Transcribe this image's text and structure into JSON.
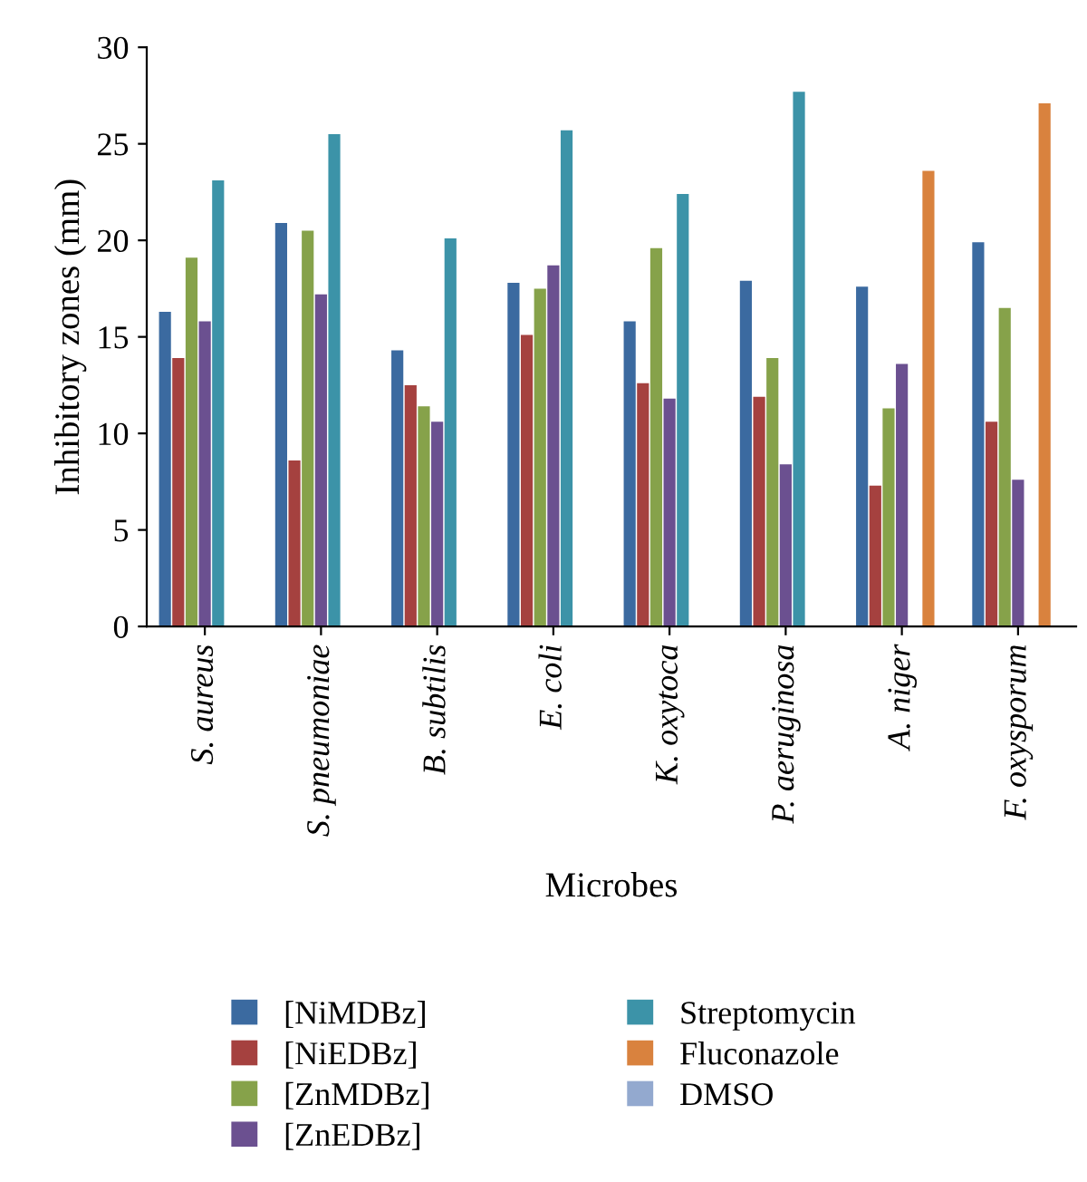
{
  "chart_data": {
    "type": "bar",
    "xlabel": "Microbes",
    "ylabel": "Inhibitory zones (mm)",
    "categories": [
      "S. aureus",
      "S. pneumoniae",
      "B. subtilis",
      "E. coli",
      "K. oxytoca",
      "P. aeruginosa",
      "A. niger",
      "F. oxysporum"
    ],
    "series": [
      {
        "name": "[NiMDBz]",
        "color": "#3b6aa0",
        "values": [
          16.3,
          20.9,
          14.3,
          17.8,
          15.8,
          17.9,
          17.6,
          19.9
        ]
      },
      {
        "name": "[NiEDBz]",
        "color": "#a5413f",
        "values": [
          13.9,
          8.6,
          12.5,
          15.1,
          12.6,
          11.9,
          7.3,
          10.6
        ]
      },
      {
        "name": "[ZnMDBz]",
        "color": "#86a24a",
        "values": [
          19.1,
          20.5,
          11.4,
          17.5,
          19.6,
          13.9,
          11.3,
          16.5
        ]
      },
      {
        "name": "[ZnEDBz]",
        "color": "#6b5090",
        "values": [
          15.8,
          17.2,
          10.6,
          18.7,
          11.8,
          8.4,
          13.6,
          7.6
        ]
      },
      {
        "name": "Streptomycin",
        "color": "#3c93a8",
        "values": [
          23.1,
          25.5,
          20.1,
          25.7,
          22.4,
          27.7,
          0,
          0
        ]
      },
      {
        "name": "Fluconazole",
        "color": "#d9823e",
        "values": [
          0,
          0,
          0,
          0,
          0,
          0,
          23.6,
          27.1
        ]
      },
      {
        "name": "DMSO",
        "color": "#93a9cf",
        "values": [
          0,
          0,
          0,
          0,
          0,
          0,
          0,
          0
        ]
      }
    ],
    "ylim": [
      0,
      30
    ],
    "yticks": [
      0,
      5,
      10,
      15,
      20,
      25,
      30
    ],
    "grid": false,
    "legend": "bottom"
  }
}
